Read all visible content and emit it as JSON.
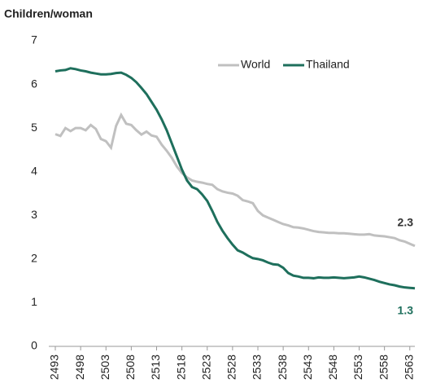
{
  "chart_data": {
    "type": "line",
    "y_axis_label": "Children/woman",
    "x": [
      2493,
      2494,
      2495,
      2496,
      2497,
      2498,
      2499,
      2500,
      2501,
      2502,
      2503,
      2504,
      2505,
      2506,
      2507,
      2508,
      2509,
      2510,
      2511,
      2512,
      2513,
      2514,
      2515,
      2516,
      2517,
      2518,
      2519,
      2520,
      2521,
      2522,
      2523,
      2524,
      2525,
      2526,
      2527,
      2528,
      2529,
      2530,
      2531,
      2532,
      2533,
      2534,
      2535,
      2536,
      2537,
      2538,
      2539,
      2540,
      2541,
      2542,
      2543,
      2544,
      2545,
      2546,
      2547,
      2548,
      2549,
      2550,
      2551,
      2552,
      2553,
      2554,
      2555,
      2556,
      2557,
      2558,
      2559,
      2560,
      2561,
      2562,
      2563,
      2564
    ],
    "series": [
      {
        "name": "World",
        "color": "#c0c0c0",
        "last_label": "2.3",
        "values": [
          4.86,
          4.82,
          5.0,
          4.93,
          5.0,
          5.0,
          4.95,
          5.07,
          4.98,
          4.75,
          4.7,
          4.55,
          5.05,
          5.3,
          5.1,
          5.07,
          4.95,
          4.85,
          4.92,
          4.83,
          4.8,
          4.62,
          4.48,
          4.32,
          4.12,
          3.97,
          3.87,
          3.8,
          3.77,
          3.75,
          3.72,
          3.7,
          3.6,
          3.55,
          3.52,
          3.5,
          3.45,
          3.35,
          3.32,
          3.28,
          3.1,
          3.0,
          2.95,
          2.9,
          2.85,
          2.8,
          2.77,
          2.73,
          2.72,
          2.7,
          2.67,
          2.64,
          2.62,
          2.61,
          2.6,
          2.6,
          2.59,
          2.59,
          2.58,
          2.57,
          2.56,
          2.56,
          2.57,
          2.54,
          2.53,
          2.52,
          2.5,
          2.48,
          2.43,
          2.4,
          2.35,
          2.3
        ]
      },
      {
        "name": "Thailand",
        "color": "#1e6f5c",
        "last_label": "1.3",
        "values": [
          6.3,
          6.32,
          6.33,
          6.37,
          6.35,
          6.32,
          6.3,
          6.27,
          6.25,
          6.23,
          6.23,
          6.24,
          6.26,
          6.27,
          6.22,
          6.15,
          6.05,
          5.92,
          5.78,
          5.6,
          5.42,
          5.2,
          4.95,
          4.65,
          4.35,
          4.05,
          3.8,
          3.65,
          3.6,
          3.48,
          3.33,
          3.1,
          2.85,
          2.65,
          2.48,
          2.33,
          2.2,
          2.15,
          2.08,
          2.02,
          2.0,
          1.97,
          1.92,
          1.88,
          1.87,
          1.8,
          1.68,
          1.62,
          1.6,
          1.57,
          1.57,
          1.56,
          1.58,
          1.57,
          1.57,
          1.58,
          1.57,
          1.56,
          1.57,
          1.58,
          1.6,
          1.58,
          1.55,
          1.52,
          1.48,
          1.45,
          1.42,
          1.4,
          1.37,
          1.35,
          1.34,
          1.33
        ]
      }
    ],
    "xlim": [
      2493,
      2564
    ],
    "xticks": [
      2493,
      2498,
      2503,
      2508,
      2513,
      2518,
      2523,
      2528,
      2533,
      2538,
      2543,
      2548,
      2553,
      2558,
      2563
    ],
    "ylim": [
      0,
      7
    ],
    "yticks": [
      0,
      1,
      2,
      3,
      4,
      5,
      6,
      7
    ],
    "grid": false,
    "legend": "top"
  }
}
